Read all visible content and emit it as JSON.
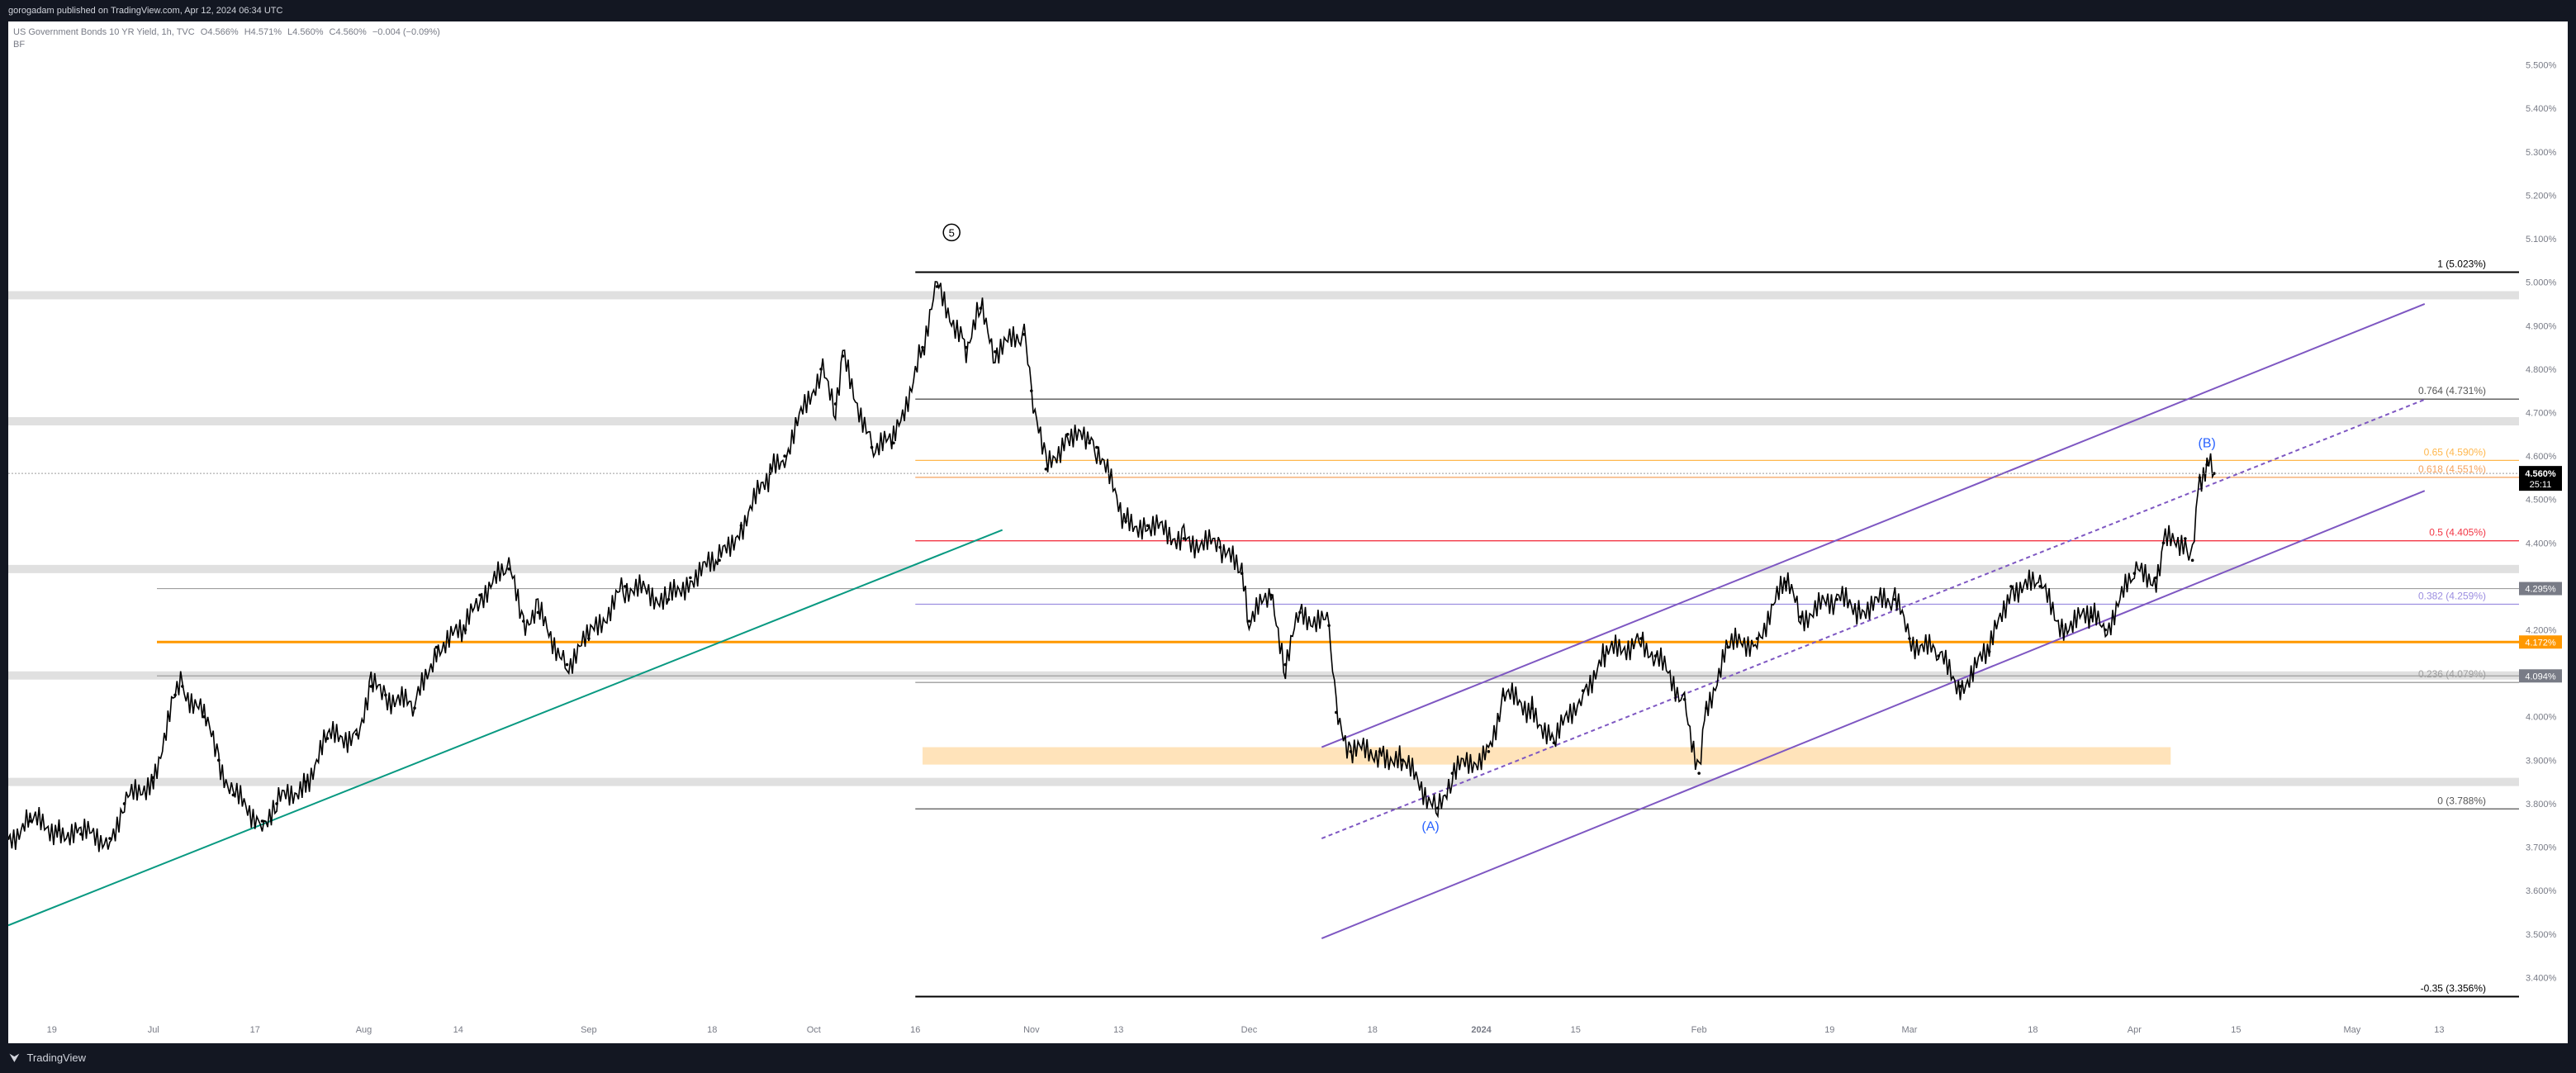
{
  "header": {
    "published": "gorogadam published on TradingView.com, Apr 12, 2024 06:34 UTC"
  },
  "legend": {
    "symbol": "US Government Bonds 10 YR Yield, 1h, TVC",
    "open": "O4.566%",
    "high": "H4.571%",
    "low": "L4.560%",
    "close": "C4.560%",
    "change": "−0.004 (−0.09%)",
    "author_tag": "BF"
  },
  "footer": {
    "brand": "TradingView"
  },
  "colors": {
    "candles": "#000000",
    "uptrend_line": "#089981",
    "channel": "#7e57c2",
    "fib_05": "#f23645",
    "fib_065": "#ffb74d",
    "level_4172": "#ff9800",
    "label_dark": "#000000",
    "label_grey": "#787b86",
    "wave_labels": "#2962ff"
  },
  "chart_data": {
    "type": "line",
    "y_axis": {
      "ylim": [
        3.3,
        5.6
      ],
      "ticks": [
        "5.500%",
        "5.400%",
        "5.300%",
        "5.200%",
        "5.100%",
        "5.000%",
        "4.900%",
        "4.800%",
        "4.700%",
        "4.600%",
        "4.500%",
        "4.400%",
        "4.300%",
        "4.200%",
        "4.100%",
        "4.000%",
        "3.900%",
        "3.800%",
        "3.700%",
        "3.600%",
        "3.500%",
        "3.400%"
      ],
      "tick_values": [
        5.5,
        5.4,
        5.3,
        5.2,
        5.1,
        5.0,
        4.9,
        4.8,
        4.7,
        4.6,
        4.5,
        4.4,
        4.3,
        4.2,
        4.1,
        4.0,
        3.9,
        3.8,
        3.7,
        3.6,
        3.5,
        3.4
      ]
    },
    "x_axis": {
      "xlim": [
        "2023-06-13",
        "2024-05-24"
      ],
      "ticks": [
        {
          "label": "19",
          "date": "2023-06-19"
        },
        {
          "label": "Jul",
          "date": "2023-07-03"
        },
        {
          "label": "17",
          "date": "2023-07-17"
        },
        {
          "label": "Aug",
          "date": "2023-08-01"
        },
        {
          "label": "14",
          "date": "2023-08-14"
        },
        {
          "label": "Sep",
          "date": "2023-09-01"
        },
        {
          "label": "18",
          "date": "2023-09-18"
        },
        {
          "label": "Oct",
          "date": "2023-10-02"
        },
        {
          "label": "16",
          "date": "2023-10-16"
        },
        {
          "label": "Nov",
          "date": "2023-11-01"
        },
        {
          "label": "13",
          "date": "2023-11-13"
        },
        {
          "label": "Dec",
          "date": "2023-12-01"
        },
        {
          "label": "18",
          "date": "2023-12-18"
        },
        {
          "label": "2024",
          "date": "2024-01-02"
        },
        {
          "label": "15",
          "date": "2024-01-15"
        },
        {
          "label": "Feb",
          "date": "2024-02-01"
        },
        {
          "label": "19",
          "date": "2024-02-19"
        },
        {
          "label": "Mar",
          "date": "2024-03-01"
        },
        {
          "label": "18",
          "date": "2024-03-18"
        },
        {
          "label": "Apr",
          "date": "2024-04-01"
        },
        {
          "label": "15",
          "date": "2024-04-15"
        },
        {
          "label": "May",
          "date": "2024-05-01"
        },
        {
          "label": "13",
          "date": "2024-05-13"
        }
      ]
    },
    "series": [
      {
        "points": [
          [
            "2023-06-13",
            3.72
          ],
          [
            "2023-06-16",
            3.76
          ],
          [
            "2023-06-20",
            3.74
          ],
          [
            "2023-06-23",
            3.73
          ],
          [
            "2023-06-27",
            3.72
          ],
          [
            "2023-06-29",
            3.8
          ],
          [
            "2023-07-03",
            3.86
          ],
          [
            "2023-07-06",
            4.05
          ],
          [
            "2023-07-07",
            4.07
          ],
          [
            "2023-07-10",
            4.0
          ],
          [
            "2023-07-12",
            3.9
          ],
          [
            "2023-07-14",
            3.82
          ],
          [
            "2023-07-18",
            3.76
          ],
          [
            "2023-07-20",
            3.8
          ],
          [
            "2023-07-24",
            3.85
          ],
          [
            "2023-07-27",
            3.95
          ],
          [
            "2023-07-31",
            3.96
          ],
          [
            "2023-08-02",
            4.07
          ],
          [
            "2023-08-04",
            4.05
          ],
          [
            "2023-08-08",
            4.02
          ],
          [
            "2023-08-11",
            4.16
          ],
          [
            "2023-08-15",
            4.2
          ],
          [
            "2023-08-17",
            4.28
          ],
          [
            "2023-08-21",
            4.34
          ],
          [
            "2023-08-23",
            4.22
          ],
          [
            "2023-08-25",
            4.24
          ],
          [
            "2023-08-29",
            4.12
          ],
          [
            "2023-09-01",
            4.18
          ],
          [
            "2023-09-06",
            4.3
          ],
          [
            "2023-09-12",
            4.27
          ],
          [
            "2023-09-15",
            4.32
          ],
          [
            "2023-09-19",
            4.36
          ],
          [
            "2023-09-22",
            4.44
          ],
          [
            "2023-09-26",
            4.56
          ],
          [
            "2023-09-28",
            4.6
          ],
          [
            "2023-10-03",
            4.8
          ],
          [
            "2023-10-05",
            4.72
          ],
          [
            "2023-10-06",
            4.83
          ],
          [
            "2023-10-10",
            4.62
          ],
          [
            "2023-10-13",
            4.63
          ],
          [
            "2023-10-17",
            4.85
          ],
          [
            "2023-10-19",
            4.99
          ],
          [
            "2023-10-23",
            4.85
          ],
          [
            "2023-10-25",
            4.94
          ],
          [
            "2023-10-27",
            4.84
          ],
          [
            "2023-10-31",
            4.88
          ],
          [
            "2023-11-01",
            4.75
          ],
          [
            "2023-11-03",
            4.57
          ],
          [
            "2023-11-06",
            4.65
          ],
          [
            "2023-11-09",
            4.63
          ],
          [
            "2023-11-10",
            4.62
          ],
          [
            "2023-11-14",
            4.45
          ],
          [
            "2023-11-17",
            4.44
          ],
          [
            "2023-11-22",
            4.41
          ],
          [
            "2023-11-27",
            4.39
          ],
          [
            "2023-11-30",
            4.33
          ],
          [
            "2023-12-01",
            4.22
          ],
          [
            "2023-12-04",
            4.28
          ],
          [
            "2023-12-06",
            4.12
          ],
          [
            "2023-12-08",
            4.24
          ],
          [
            "2023-12-12",
            4.21
          ],
          [
            "2023-12-13",
            4.01
          ],
          [
            "2023-12-15",
            3.92
          ],
          [
            "2023-12-19",
            3.92
          ],
          [
            "2023-12-22",
            3.9
          ],
          [
            "2023-12-27",
            3.79
          ],
          [
            "2023-12-29",
            3.87
          ],
          [
            "2024-01-03",
            3.92
          ],
          [
            "2024-01-05",
            4.05
          ],
          [
            "2024-01-09",
            4.02
          ],
          [
            "2024-01-12",
            3.94
          ],
          [
            "2024-01-16",
            4.06
          ],
          [
            "2024-01-19",
            4.14
          ],
          [
            "2024-01-24",
            4.18
          ],
          [
            "2024-01-26",
            4.14
          ],
          [
            "2024-01-30",
            4.04
          ],
          [
            "2024-02-01",
            3.87
          ],
          [
            "2024-02-02",
            4.02
          ],
          [
            "2024-02-05",
            4.16
          ],
          [
            "2024-02-09",
            4.18
          ],
          [
            "2024-02-13",
            4.31
          ],
          [
            "2024-02-15",
            4.23
          ],
          [
            "2024-02-20",
            4.27
          ],
          [
            "2024-02-23",
            4.25
          ],
          [
            "2024-02-28",
            4.27
          ],
          [
            "2024-03-01",
            4.18
          ],
          [
            "2024-03-05",
            4.14
          ],
          [
            "2024-03-08",
            4.07
          ],
          [
            "2024-03-12",
            4.15
          ],
          [
            "2024-03-15",
            4.3
          ],
          [
            "2024-03-19",
            4.3
          ],
          [
            "2024-03-22",
            4.21
          ],
          [
            "2024-03-26",
            4.23
          ],
          [
            "2024-03-28",
            4.2
          ],
          [
            "2024-04-01",
            4.33
          ],
          [
            "2024-04-04",
            4.32
          ],
          [
            "2024-04-05",
            4.4
          ],
          [
            "2024-04-08",
            4.41
          ],
          [
            "2024-04-09",
            4.36
          ],
          [
            "2024-04-10",
            4.55
          ],
          [
            "2024-04-11",
            4.58
          ],
          [
            "2024-04-12",
            4.56
          ]
        ]
      }
    ],
    "fib_levels": [
      {
        "ratio": "1",
        "value": 5.023,
        "label": "1 (5.023%)"
      },
      {
        "ratio": "0.764",
        "value": 4.731,
        "label": "0.764 (4.731%)"
      },
      {
        "ratio": "0.65",
        "value": 4.59,
        "label": "0.65 (4.590%)"
      },
      {
        "ratio": "0.618",
        "value": 4.551,
        "label": "0.618 (4.551%)"
      },
      {
        "ratio": "0.5",
        "value": 4.405,
        "label": "0.5 (4.405%)"
      },
      {
        "ratio": "0.382",
        "value": 4.259,
        "label": "0.382 (4.259%)"
      },
      {
        "ratio": "0.236",
        "value": 4.079,
        "label": "0.236 (4.079%)"
      },
      {
        "ratio": "0",
        "value": 3.788,
        "label": "0 (3.788%)"
      },
      {
        "ratio": "-0.35",
        "value": 3.356,
        "label": "-0.35 (3.356%)"
      }
    ],
    "fib_range": [
      "2023-10-16",
      "2024-05-24"
    ],
    "channel": {
      "upper": [
        [
          "2023-12-11",
          3.93
        ],
        [
          "2024-05-11",
          4.95
        ]
      ],
      "middle": [
        [
          "2023-12-11",
          3.72
        ],
        [
          "2024-05-11",
          4.73
        ]
      ],
      "lower": [
        [
          "2023-12-11",
          3.49
        ],
        [
          "2024-05-11",
          4.52
        ]
      ]
    },
    "uptrend_line": [
      [
        "2023-06-13",
        3.52
      ],
      [
        "2023-10-28",
        4.43
      ]
    ],
    "horizontal_zones": [
      {
        "value": 4.97
      },
      {
        "value": 4.68
      },
      {
        "value": 4.34
      },
      {
        "value": 4.095
      },
      {
        "value": 3.85
      }
    ],
    "highlight_zone": {
      "from": "2023-10-17",
      "to": "2024-04-06",
      "low": 3.89,
      "high": 3.93
    },
    "level_lines": [
      {
        "value": 4.295,
        "label": "4.295%"
      },
      {
        "value": 4.172,
        "label": "4.172%"
      },
      {
        "value": 4.094,
        "label": "4.094%"
      }
    ],
    "current_price": {
      "value": 4.56,
      "label": "4.560%",
      "countdown": "25:11"
    },
    "annotations": [
      {
        "text": "5",
        "date": "2023-10-21",
        "value": 5.105,
        "circled": true
      },
      {
        "text": "(A)",
        "date": "2023-12-26",
        "value": 3.738
      },
      {
        "text": "(B)",
        "date": "2024-04-11",
        "value": 4.62
      }
    ]
  }
}
